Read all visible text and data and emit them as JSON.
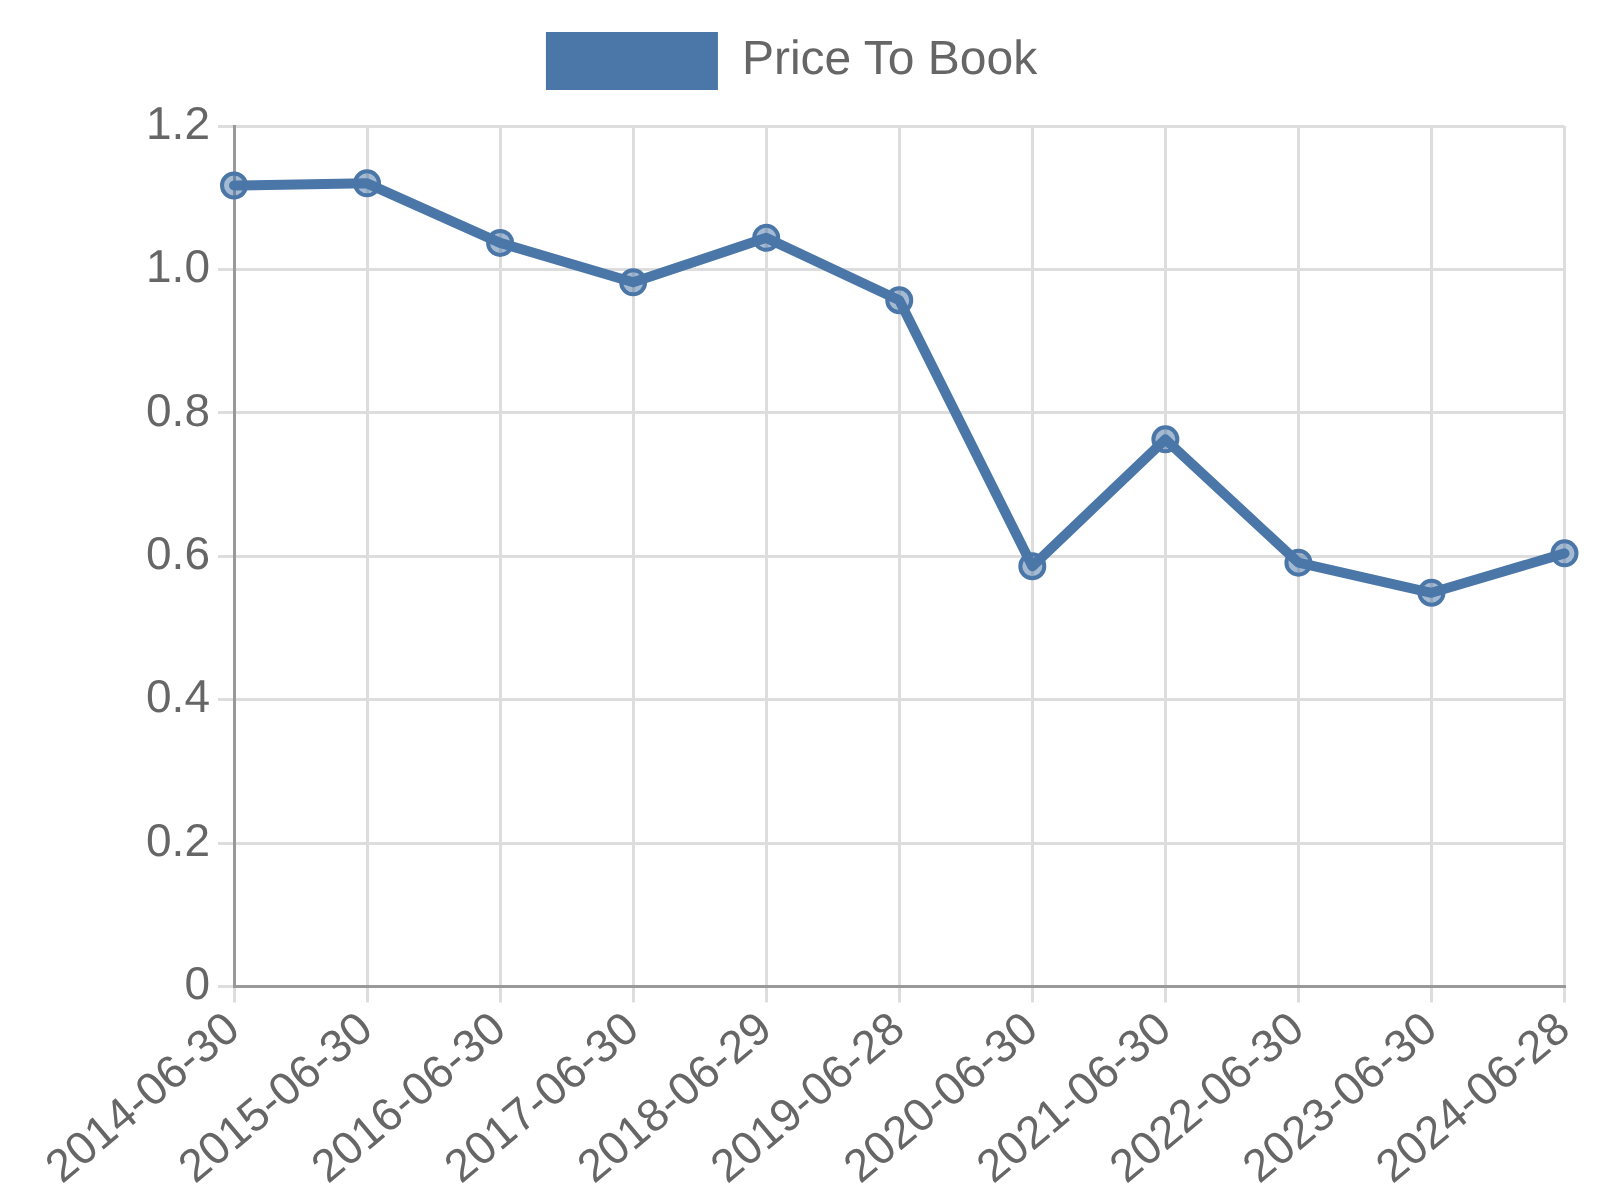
{
  "chart_data": {
    "type": "line",
    "categories": [
      "2014-06-30",
      "2015-06-30",
      "2016-06-30",
      "2017-06-30",
      "2018-06-29",
      "2019-06-28",
      "2020-06-30",
      "2021-06-30",
      "2022-06-30",
      "2023-06-30",
      "2024-06-28"
    ],
    "series": [
      {
        "name": "Price To Book",
        "color": "#4a76a8",
        "values": [
          1.117,
          1.12,
          1.037,
          0.982,
          1.044,
          0.957,
          0.586,
          0.763,
          0.591,
          0.549,
          0.604
        ]
      }
    ],
    "ylim": [
      0,
      1.2
    ],
    "yticks": [
      0,
      0.2,
      0.4,
      0.6,
      0.8,
      {
        "value": 1,
        "label": "1.0"
      },
      1.2
    ],
    "grid": true,
    "legend": "top",
    "marker": "circle",
    "line_style": "solid"
  }
}
